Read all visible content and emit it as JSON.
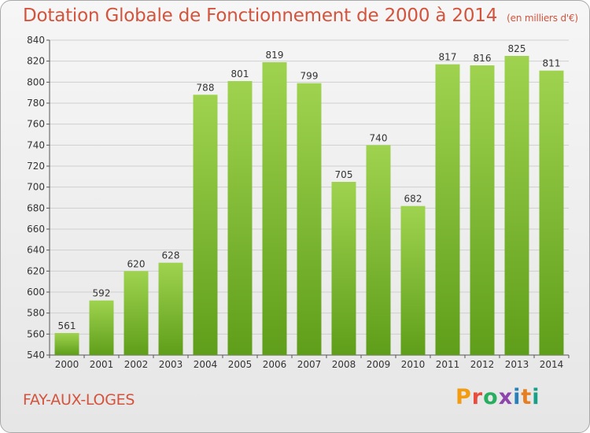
{
  "header": {
    "title": "Dotation Globale de Fonctionnement de 2000 à 2014",
    "subtitle": "(en milliers d'€)"
  },
  "footer": {
    "commune": "FAY-AUX-LOGES",
    "logo_text": "Proxiti",
    "logo_colors": [
      "#f39c12",
      "#e74c3c",
      "#27ae60",
      "#8e44ad",
      "#2980b9",
      "#e67e22",
      "#16a085"
    ]
  },
  "chart_data": {
    "type": "bar",
    "categories": [
      "2000",
      "2001",
      "2002",
      "2003",
      "2004",
      "2005",
      "2006",
      "2007",
      "2008",
      "2009",
      "2010",
      "2011",
      "2012",
      "2013",
      "2014"
    ],
    "values": [
      561,
      592,
      620,
      628,
      788,
      801,
      819,
      799,
      705,
      740,
      682,
      817,
      816,
      825,
      811
    ],
    "ylim": [
      540,
      840
    ],
    "yticks": [
      540,
      560,
      580,
      600,
      620,
      640,
      660,
      680,
      700,
      720,
      740,
      760,
      780,
      800,
      820,
      840
    ],
    "grid": true,
    "bar_color_top": "#9fd34f",
    "bar_color_bottom": "#5f9e1a"
  }
}
